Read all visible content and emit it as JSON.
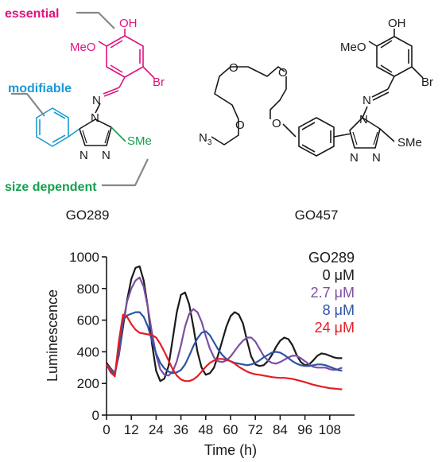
{
  "structures": {
    "left": {
      "name": "GO289",
      "annotations": {
        "essential": "essential",
        "modifiable": "modifiable",
        "size_dependent": "size dependent"
      },
      "atoms": {
        "oh": "OH",
        "meo": "MeO",
        "br": "Br",
        "n_imine": "N",
        "n_ring": "N",
        "sme": "SMe",
        "n_a": "N",
        "n_b": "N"
      }
    },
    "right": {
      "name": "GO457",
      "atoms": {
        "n3": "N",
        "n3_sub": "3",
        "o1": "O",
        "o2": "O",
        "o3": "O",
        "o4": "O",
        "oh": "OH",
        "meo": "MeO",
        "br": "Br",
        "n_imine": "N",
        "n_ring": "N",
        "sme": "SMe",
        "n_a": "N",
        "n_b": "N"
      }
    }
  },
  "colors": {
    "essential": "#e0127e",
    "modifiable": "#1a9ad6",
    "size_dependent": "#13a04b",
    "series_0": "#1a1a1a",
    "series_2_7": "#7b4fa3",
    "series_8": "#2d53a4",
    "series_24": "#e31e24"
  },
  "chart_data": {
    "type": "line",
    "xlabel": "Time (h)",
    "ylabel": "Luminescence",
    "xlim": [
      0,
      120
    ],
    "ylim": [
      0,
      1000
    ],
    "xticks": [
      0,
      12,
      24,
      36,
      48,
      60,
      72,
      84,
      96,
      108
    ],
    "yticks": [
      0,
      200,
      400,
      600,
      800,
      1000
    ],
    "legend_title": "GO289",
    "legend_position": "top-right",
    "grid": false,
    "series": [
      {
        "name": "0 μM",
        "color": "#1a1a1a",
        "x": [
          0,
          2,
          4,
          6,
          8,
          10,
          12,
          14,
          16,
          18,
          20,
          22,
          24,
          26,
          28,
          30,
          32,
          34,
          36,
          38,
          40,
          42,
          44,
          46,
          48,
          50,
          52,
          54,
          56,
          58,
          60,
          62,
          64,
          66,
          68,
          70,
          72,
          74,
          76,
          78,
          80,
          82,
          84,
          86,
          88,
          90,
          92,
          94,
          96,
          98,
          100,
          102,
          104,
          106,
          108,
          110,
          112,
          114
        ],
        "y": [
          330,
          295,
          265,
          380,
          560,
          730,
          860,
          930,
          940,
          850,
          680,
          450,
          280,
          215,
          230,
          310,
          480,
          650,
          760,
          775,
          700,
          560,
          400,
          300,
          255,
          265,
          300,
          380,
          470,
          560,
          625,
          650,
          635,
          580,
          470,
          370,
          320,
          310,
          315,
          340,
          380,
          430,
          470,
          490,
          480,
          440,
          380,
          335,
          315,
          320,
          345,
          375,
          390,
          385,
          375,
          365,
          360,
          360
        ]
      },
      {
        "name": "2.7 μM",
        "color": "#7b4fa3",
        "x": [
          0,
          2,
          4,
          6,
          8,
          10,
          12,
          14,
          16,
          18,
          20,
          22,
          24,
          26,
          28,
          30,
          32,
          34,
          36,
          38,
          40,
          42,
          44,
          46,
          48,
          50,
          52,
          54,
          56,
          58,
          60,
          62,
          64,
          66,
          68,
          70,
          72,
          74,
          76,
          78,
          80,
          82,
          84,
          86,
          88,
          90,
          92,
          94,
          96,
          98,
          100,
          102,
          104,
          106,
          108,
          110,
          112,
          114
        ],
        "y": [
          320,
          290,
          260,
          390,
          590,
          720,
          800,
          850,
          870,
          810,
          680,
          520,
          380,
          290,
          255,
          250,
          275,
          340,
          440,
          560,
          640,
          670,
          650,
          590,
          500,
          420,
          365,
          340,
          335,
          345,
          370,
          405,
          440,
          470,
          490,
          490,
          465,
          420,
          375,
          345,
          330,
          325,
          335,
          350,
          365,
          375,
          375,
          360,
          340,
          320,
          305,
          300,
          300,
          300,
          290,
          285,
          290,
          300
        ]
      },
      {
        "name": "8 μM",
        "color": "#2d53a4",
        "x": [
          0,
          2,
          4,
          6,
          8,
          10,
          12,
          14,
          16,
          18,
          20,
          22,
          24,
          26,
          28,
          30,
          32,
          34,
          36,
          38,
          40,
          42,
          44,
          46,
          48,
          50,
          52,
          54,
          56,
          58,
          60,
          62,
          64,
          66,
          68,
          70,
          72,
          74,
          76,
          78,
          80,
          82,
          84,
          86,
          88,
          90,
          92,
          94,
          96,
          98,
          100,
          102,
          104,
          106,
          108,
          110,
          112,
          114
        ],
        "y": [
          320,
          280,
          250,
          420,
          600,
          630,
          640,
          650,
          650,
          620,
          560,
          470,
          390,
          330,
          295,
          275,
          265,
          270,
          285,
          320,
          375,
          435,
          485,
          520,
          530,
          505,
          460,
          415,
          380,
          355,
          340,
          330,
          325,
          320,
          315,
          320,
          330,
          345,
          365,
          380,
          395,
          400,
          395,
          380,
          360,
          340,
          325,
          315,
          310,
          310,
          315,
          320,
          320,
          315,
          305,
          295,
          285,
          280
        ]
      },
      {
        "name": "24 μM",
        "color": "#e31e24",
        "x": [
          0,
          2,
          4,
          6,
          8,
          10,
          12,
          14,
          16,
          18,
          20,
          22,
          24,
          26,
          28,
          30,
          32,
          34,
          36,
          38,
          40,
          42,
          44,
          46,
          48,
          50,
          52,
          54,
          56,
          58,
          60,
          62,
          64,
          66,
          68,
          70,
          72,
          74,
          76,
          78,
          80,
          82,
          84,
          86,
          88,
          90,
          92,
          94,
          96,
          98,
          100,
          102,
          104,
          106,
          108,
          110,
          112,
          114
        ],
        "y": [
          320,
          270,
          245,
          470,
          635,
          620,
          575,
          540,
          520,
          515,
          510,
          505,
          490,
          450,
          400,
          345,
          290,
          250,
          225,
          215,
          215,
          225,
          245,
          275,
          305,
          330,
          345,
          355,
          355,
          350,
          340,
          325,
          305,
          290,
          275,
          265,
          258,
          255,
          250,
          245,
          240,
          237,
          235,
          235,
          232,
          228,
          222,
          215,
          208,
          200,
          192,
          186,
          180,
          175,
          170,
          168,
          165,
          163
        ]
      }
    ]
  }
}
